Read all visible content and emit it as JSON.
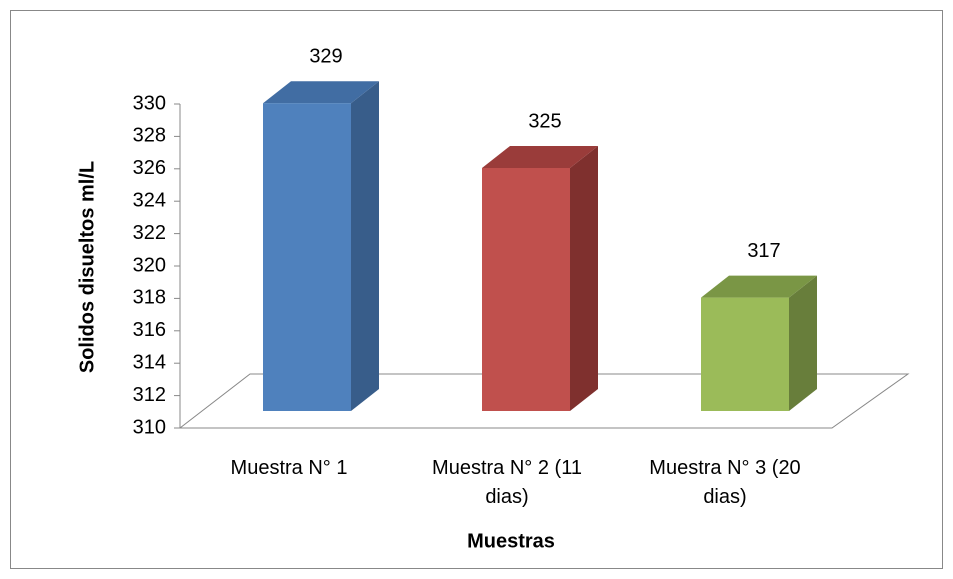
{
  "chart_data": {
    "type": "bar3d",
    "categories": [
      "Muestra N° 1",
      "Muestra N° 2 (11 dias)",
      "Muestra N° 3 (20 dias)"
    ],
    "values": [
      329,
      325,
      317
    ],
    "colors": [
      "#4f81bd",
      "#c0504d",
      "#9bbb59"
    ],
    "side_colors": [
      "#385d8a",
      "#7f302e",
      "#687e3b"
    ],
    "top_colors": [
      "#416da3",
      "#9a3c3a",
      "#7a9645"
    ],
    "ylim": [
      310,
      330
    ],
    "yticks": [
      310,
      312,
      314,
      316,
      318,
      320,
      322,
      324,
      326,
      328,
      330
    ],
    "ylabel": "Solidos disueltos ml/L",
    "xlabel": "Muestras",
    "grid": false
  }
}
